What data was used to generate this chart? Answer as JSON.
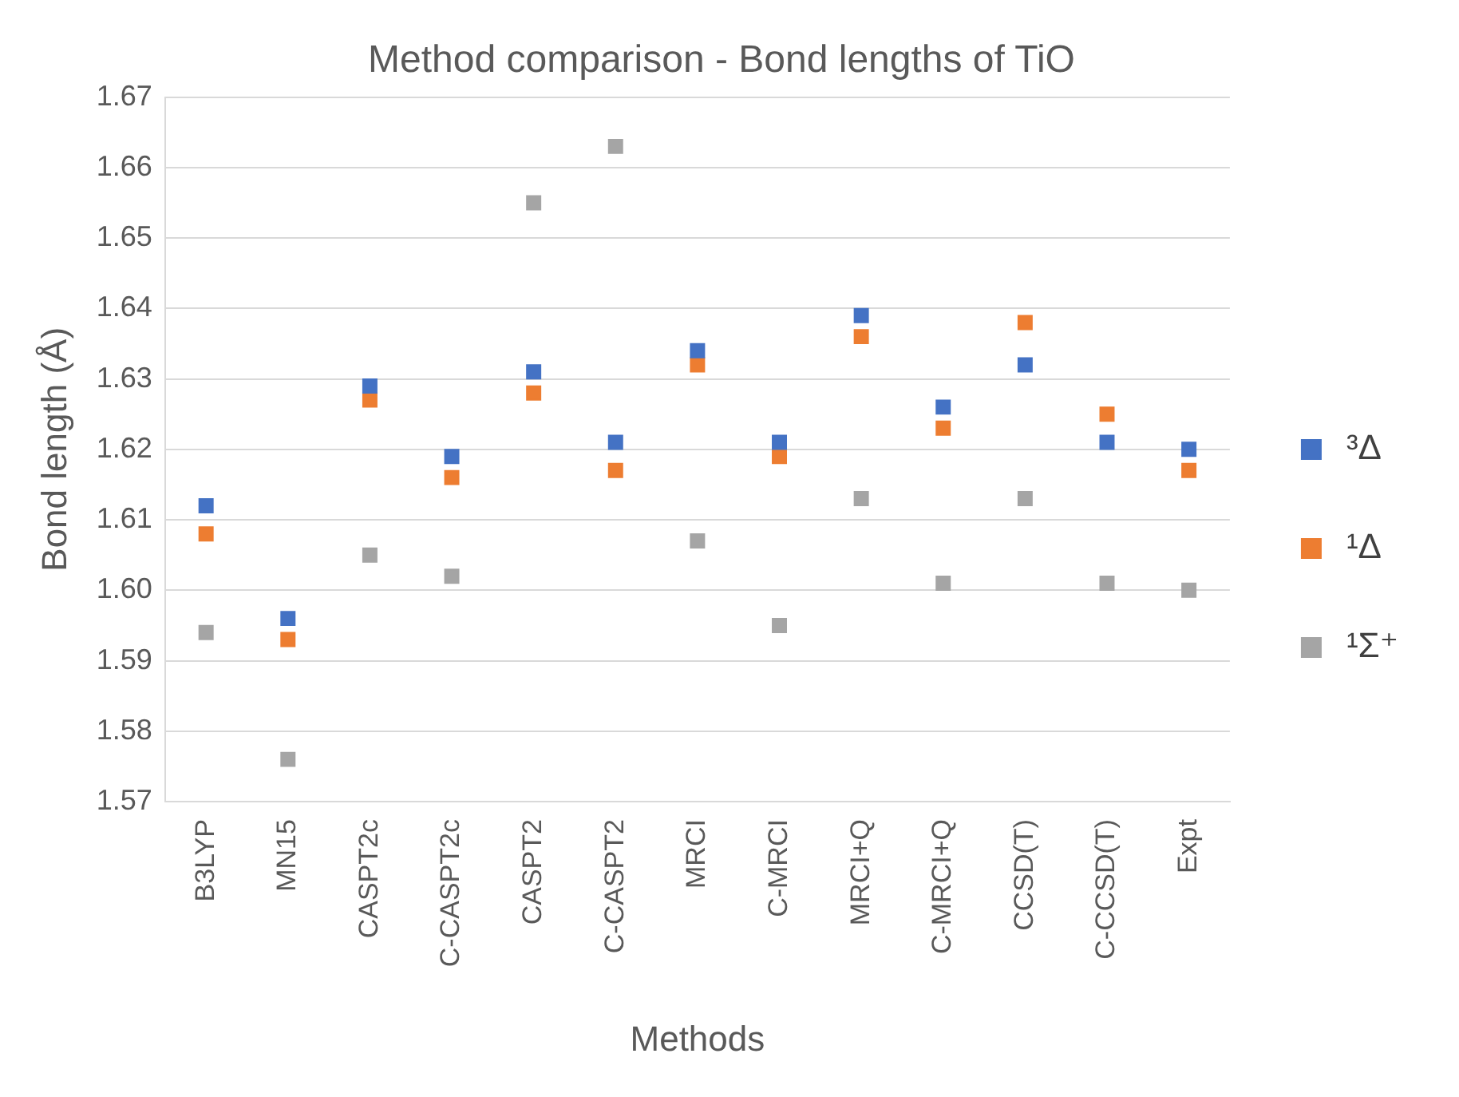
{
  "chart_data": {
    "type": "scatter",
    "title": "Method comparison - Bond lengths of TiO",
    "xlabel": "Methods",
    "ylabel": "Bond length (Å)",
    "categories": [
      "B3LYP",
      "MN15",
      "CASPT2c",
      "C-CASPT2c",
      "CASPT2",
      "C-CASPT2",
      "MRCI",
      "C-MRCI",
      "MRCI+Q",
      "C-MRCI+Q",
      "CCSD(T)",
      "C-CCSD(T)",
      "Expt"
    ],
    "series": [
      {
        "name": "³Δ",
        "color": "#4472c4",
        "values": [
          1.612,
          1.596,
          1.629,
          1.619,
          1.631,
          1.621,
          1.634,
          1.621,
          1.639,
          1.626,
          1.632,
          1.621,
          1.62
        ]
      },
      {
        "name": "¹Δ",
        "color": "#ed7d31",
        "values": [
          1.608,
          1.593,
          1.627,
          1.616,
          1.628,
          1.617,
          1.632,
          1.619,
          1.636,
          1.623,
          1.638,
          1.625,
          1.617
        ]
      },
      {
        "name": "¹Σ⁺",
        "color": "#a5a5a5",
        "values": [
          1.594,
          1.576,
          1.605,
          1.602,
          1.655,
          1.663,
          1.607,
          1.595,
          1.613,
          1.601,
          1.613,
          1.601,
          1.6
        ]
      }
    ],
    "ylim": [
      1.57,
      1.67
    ],
    "yticks": [
      1.57,
      1.58,
      1.59,
      {
        "value": 1.6,
        "label": "1.60"
      },
      1.61,
      1.62,
      1.63,
      1.64,
      1.65,
      1.66,
      1.67
    ],
    "grid": "y",
    "legend": "right",
    "marker": "square"
  }
}
